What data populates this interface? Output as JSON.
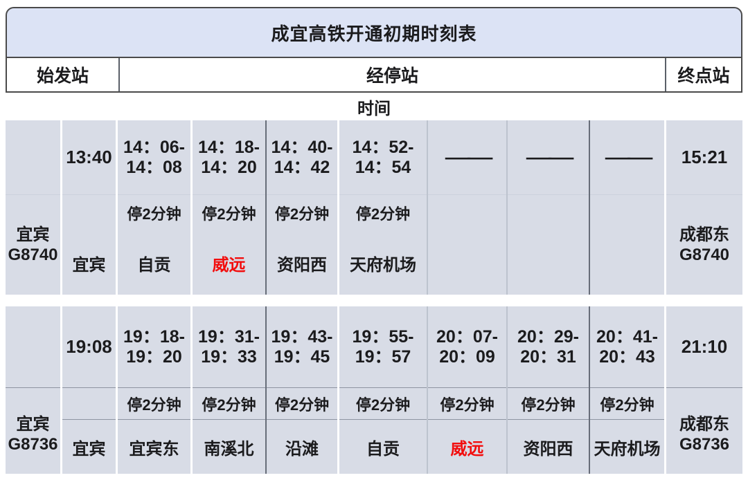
{
  "title": "成宜高铁开通初期时刻表",
  "columns_header": {
    "origin": "始发站",
    "via": "经停站",
    "terminal": "终点站"
  },
  "time_label": "时间",
  "colors": {
    "title_bg": "#dce3f5",
    "cell_bg": "#d8dce6",
    "red": "#f20d0d"
  },
  "trains": [
    {
      "train_id_line1": "宜宾",
      "train_id_line2": "G8740",
      "origin": {
        "depart": "13:40",
        "station": "宜宾"
      },
      "stops": [
        {
          "t1": "14：06-",
          "t2": "14：08",
          "dwell": "停2分钟",
          "station": "自贡",
          "highlight": false,
          "dash": ""
        },
        {
          "t1": "14：18-",
          "t2": "14：20",
          "dwell": "停2分钟",
          "station": "威远",
          "highlight": true,
          "dash": ""
        },
        {
          "t1": "14：40-",
          "t2": "14：42",
          "dwell": "停2分钟",
          "station": "资阳西",
          "highlight": false,
          "dash": ""
        },
        {
          "t1": "14：52-",
          "t2": "14：54",
          "dwell": "停2分钟",
          "station": "天府机场",
          "highlight": false,
          "dash": ""
        },
        {
          "t1": "",
          "t2": "",
          "dwell": "",
          "station": "",
          "highlight": false,
          "dash": "——"
        },
        {
          "t1": "",
          "t2": "",
          "dwell": "",
          "station": "",
          "highlight": false,
          "dash": "——"
        },
        {
          "t1": "",
          "t2": "",
          "dwell": "",
          "station": "",
          "highlight": false,
          "dash": "——"
        }
      ],
      "terminal": {
        "arrive": "15:21",
        "station": "成都东",
        "train_no": "G8740"
      }
    },
    {
      "train_id_line1": "宜宾",
      "train_id_line2": "G8736",
      "origin": {
        "depart": "19:08",
        "station": "宜宾"
      },
      "stops": [
        {
          "t1": "19：18-",
          "t2": "19：20",
          "dwell": "停2分钟",
          "station": "宜宾东",
          "highlight": false,
          "dash": ""
        },
        {
          "t1": "19：31-",
          "t2": "19：33",
          "dwell": "停2分钟",
          "station": "南溪北",
          "highlight": false,
          "dash": ""
        },
        {
          "t1": "19：43-",
          "t2": "19：45",
          "dwell": "停2分钟",
          "station": "沿滩",
          "highlight": false,
          "dash": ""
        },
        {
          "t1": "19：55-",
          "t2": "19：57",
          "dwell": "停2分钟",
          "station": "自贡",
          "highlight": false,
          "dash": ""
        },
        {
          "t1": "20：07-",
          "t2": "20：09",
          "dwell": "停2分钟",
          "station": "威远",
          "highlight": true,
          "dash": ""
        },
        {
          "t1": "20：29-",
          "t2": "20：31",
          "dwell": "停2分钟",
          "station": "资阳西",
          "highlight": false,
          "dash": ""
        },
        {
          "t1": "20：41-",
          "t2": "20：43",
          "dwell": "停2分钟",
          "station": "天府机场",
          "highlight": false,
          "dash": ""
        }
      ],
      "terminal": {
        "arrive": "21:10",
        "station": "成都东",
        "train_no": "G8736"
      }
    }
  ]
}
